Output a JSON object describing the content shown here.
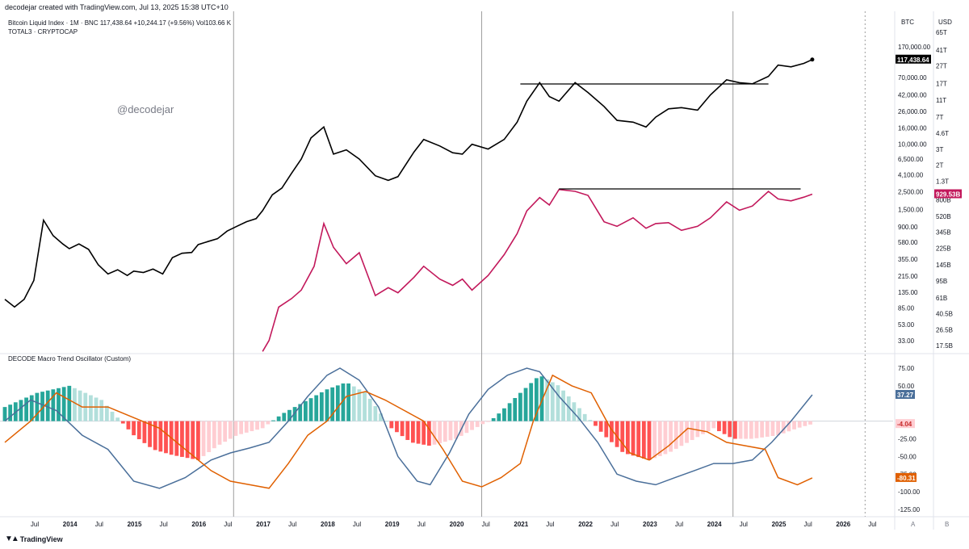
{
  "header": {
    "credit": "decodejar created with TradingView.com, Jul 13, 2025 15:38 UTC+10",
    "symbol_line": "Bitcoin Liquid Index · 1M · BNC  117,438.64  +10,244.17 (+9.56%)  Vol103.66 K",
    "second_symbol": "TOTAL3 · CRYPTOCAP",
    "watermark": "@decodejar"
  },
  "oscillator_title": "DECODE Macro Trend Oscillator (Custom)",
  "footer": {
    "logo_text": "TradingView"
  },
  "colors": {
    "btc_line": "#000000",
    "total3_line": "#c2185b",
    "osc_blue": "#4a6f9a",
    "osc_orange": "#e06000",
    "hist_pos_strong": "#26a69a",
    "hist_pos_weak": "#b2dfdb",
    "hist_neg_strong": "#ff5252",
    "hist_neg_weak": "#ffcdd2",
    "vertical_marker": "#9e9e9e"
  },
  "axes": {
    "left_header": "BTC",
    "right_header": "USD",
    "btc_ticks": [
      "170,000.00",
      "70,000.00",
      "42,000.00",
      "26,000.00",
      "16,000.00",
      "10,000.00",
      "6,500.00",
      "4,100.00",
      "2,500.00",
      "1,500.00",
      "900.00",
      "580.00",
      "355.00",
      "215.00",
      "135.00",
      "85.00",
      "53.00",
      "33.00"
    ],
    "usd_ticks": [
      "65T",
      "41T",
      "27T",
      "17T",
      "11T",
      "7T",
      "4.6T",
      "3T",
      "2T",
      "1.3T",
      "800B",
      "520B",
      "345B",
      "225B",
      "145B",
      "95B",
      "61B",
      "40.5B",
      "26.5B",
      "17.5B"
    ],
    "osc_ticks": [
      "75.00",
      "50.00",
      "-25.00",
      "-50.00",
      "-75.00",
      "-100.00",
      "-125.00"
    ],
    "btc_last_label": "117,438.64",
    "total3_last_label": "929.53B",
    "osc_blue_label": "37.27",
    "osc_hist_label": "-4.04",
    "osc_orange_label": "-80.31",
    "x_ticks": [
      "Jul",
      "2014",
      "Jul",
      "2015",
      "Jul",
      "2016",
      "Jul",
      "2017",
      "Jul",
      "2018",
      "Jul",
      "2019",
      "Jul",
      "2020",
      "Jul",
      "2021",
      "Jul",
      "2022",
      "Jul",
      "2023",
      "Jul",
      "2024",
      "Jul",
      "2025",
      "Jul",
      "2026",
      "Jul"
    ],
    "bottom_letters": [
      "A",
      "B"
    ]
  },
  "chart_data": [
    {
      "type": "line",
      "title": "Bitcoin Liquid Index · 1M · BNC",
      "scale": "log",
      "series": [
        {
          "name": "Bitcoin Liquid Index",
          "x": [
            2013.0,
            2013.15,
            2013.3,
            2013.45,
            2013.6,
            2013.75,
            2013.9,
            2014.0,
            2014.15,
            2014.3,
            2014.45,
            2014.6,
            2014.75,
            2014.9,
            2015.0,
            2015.15,
            2015.3,
            2015.45,
            2015.6,
            2015.75,
            2015.9,
            2016.0,
            2016.15,
            2016.3,
            2016.45,
            2016.6,
            2016.75,
            2016.9,
            2017.0,
            2017.15,
            2017.3,
            2017.45,
            2017.6,
            2017.75,
            2017.95,
            2018.1,
            2018.3,
            2018.5,
            2018.75,
            2018.95,
            2019.1,
            2019.35,
            2019.5,
            2019.75,
            2019.95,
            2020.1,
            2020.25,
            2020.5,
            2020.75,
            2020.95,
            2021.1,
            2021.3,
            2021.45,
            2021.6,
            2021.85,
            2022.05,
            2022.3,
            2022.5,
            2022.75,
            2022.95,
            2023.1,
            2023.3,
            2023.5,
            2023.75,
            2023.95,
            2024.2,
            2024.4,
            2024.6,
            2024.85,
            2025.0,
            2025.2,
            2025.4,
            2025.53
          ],
          "values": [
            110,
            88,
            110,
            190,
            1100,
            700,
            550,
            480,
            550,
            470,
            300,
            230,
            260,
            220,
            250,
            240,
            265,
            230,
            370,
            420,
            430,
            540,
            590,
            640,
            800,
            920,
            1050,
            1150,
            1450,
            2300,
            2800,
            4300,
            6500,
            12000,
            16500,
            7500,
            8500,
            6500,
            4000,
            3500,
            3900,
            8000,
            11500,
            9500,
            7800,
            7500,
            10000,
            8700,
            11500,
            19000,
            35000,
            60000,
            40000,
            35000,
            60000,
            45000,
            30000,
            20000,
            19000,
            16500,
            22000,
            28000,
            29000,
            27000,
            42000,
            65000,
            60000,
            58000,
            72000,
            100000,
            95000,
            105000,
            117438.64
          ]
        }
      ]
    },
    {
      "type": "line",
      "title": "TOTAL3 · CRYPTOCAP",
      "scale": "log",
      "series": [
        {
          "name": "TOTAL3",
          "x": [
            2017.0,
            2017.1,
            2017.25,
            2017.45,
            2017.6,
            2017.8,
            2017.95,
            2018.1,
            2018.3,
            2018.5,
            2018.75,
            2018.95,
            2019.1,
            2019.35,
            2019.5,
            2019.75,
            2019.95,
            2020.1,
            2020.25,
            2020.5,
            2020.75,
            2020.95,
            2021.1,
            2021.3,
            2021.45,
            2021.6,
            2021.85,
            2022.05,
            2022.3,
            2022.5,
            2022.75,
            2022.95,
            2023.1,
            2023.3,
            2023.5,
            2023.75,
            2023.95,
            2024.2,
            2024.4,
            2024.6,
            2024.85,
            2025.0,
            2025.2,
            2025.4,
            2025.53
          ],
          "values_billion": [
            15,
            20,
            48,
            60,
            75,
            140,
            430,
            230,
            150,
            200,
            65,
            80,
            70,
            105,
            140,
            100,
            85,
            100,
            75,
            110,
            190,
            330,
            600,
            850,
            700,
            1050,
            1000,
            900,
            450,
            400,
            500,
            380,
            430,
            440,
            360,
            400,
            500,
            760,
            610,
            680,
            1000,
            820,
            780,
            860,
            929.53
          ]
        }
      ]
    },
    {
      "type": "line",
      "title": "DECODE Macro Trend Oscillator (Custom)",
      "ylim": [
        -125,
        75
      ],
      "series": [
        {
          "name": "Blue",
          "x": [
            2013.0,
            2013.4,
            2013.8,
            2014.2,
            2014.6,
            2015.0,
            2015.4,
            2015.8,
            2016.2,
            2016.5,
            2016.8,
            2017.1,
            2017.4,
            2017.7,
            2018.0,
            2018.2,
            2018.5,
            2018.8,
            2019.1,
            2019.4,
            2019.6,
            2019.9,
            2020.2,
            2020.5,
            2020.8,
            2021.1,
            2021.3,
            2021.6,
            2021.9,
            2022.2,
            2022.5,
            2022.8,
            2023.1,
            2023.4,
            2023.7,
            2024.0,
            2024.3,
            2024.6,
            2024.9,
            2025.2,
            2025.53
          ],
          "values": [
            0,
            30,
            15,
            -20,
            -40,
            -85,
            -95,
            -80,
            -55,
            -45,
            -38,
            -30,
            0,
            35,
            65,
            75,
            58,
            20,
            -50,
            -85,
            -90,
            -45,
            10,
            45,
            65,
            75,
            70,
            35,
            5,
            -30,
            -75,
            -85,
            -90,
            -80,
            -70,
            -60,
            -60,
            -55,
            -30,
            0,
            37.27
          ]
        },
        {
          "name": "Orange",
          "x": [
            2013.0,
            2013.4,
            2013.8,
            2014.2,
            2014.6,
            2015.0,
            2015.4,
            2015.8,
            2016.2,
            2016.5,
            2016.8,
            2017.1,
            2017.4,
            2017.7,
            2018.0,
            2018.3,
            2018.6,
            2018.9,
            2019.2,
            2019.5,
            2019.8,
            2020.1,
            2020.4,
            2020.7,
            2021.0,
            2021.2,
            2021.5,
            2021.8,
            2022.1,
            2022.4,
            2022.7,
            2023.0,
            2023.3,
            2023.6,
            2023.9,
            2024.2,
            2024.5,
            2024.8,
            2025.0,
            2025.3,
            2025.53
          ],
          "values": [
            -30,
            0,
            40,
            20,
            20,
            5,
            -10,
            -40,
            -70,
            -85,
            -90,
            -95,
            -60,
            -20,
            0,
            35,
            42,
            30,
            15,
            0,
            -40,
            -85,
            -93,
            -80,
            -60,
            0,
            65,
            50,
            40,
            -10,
            -45,
            -55,
            -35,
            -10,
            -15,
            -30,
            -35,
            -40,
            -80,
            -90,
            -80.31
          ]
        },
        {
          "name": "Histogram",
          "x": [
            2013.0,
            2013.5,
            2014.0,
            2014.5,
            2015.0,
            2015.3,
            2015.6,
            2016.0,
            2016.3,
            2016.6,
            2017.0,
            2017.3,
            2017.6,
            2018.0,
            2018.3,
            2018.6,
            2019.0,
            2019.3,
            2019.6,
            2020.0,
            2020.3,
            2020.6,
            2021.0,
            2021.3,
            2021.6,
            2022.0,
            2022.3,
            2022.6,
            2023.0,
            2023.3,
            2023.6,
            2024.0,
            2024.3,
            2024.6,
            2025.0,
            2025.3,
            2025.53
          ],
          "values": [
            20,
            40,
            50,
            30,
            -20,
            -40,
            -48,
            -55,
            -35,
            -20,
            -10,
            10,
            25,
            45,
            55,
            40,
            -10,
            -30,
            -35,
            -25,
            -10,
            5,
            40,
            65,
            50,
            10,
            -20,
            -45,
            -55,
            -45,
            -30,
            -10,
            -25,
            -25,
            -20,
            -10,
            -4.04
          ]
        }
      ]
    }
  ]
}
